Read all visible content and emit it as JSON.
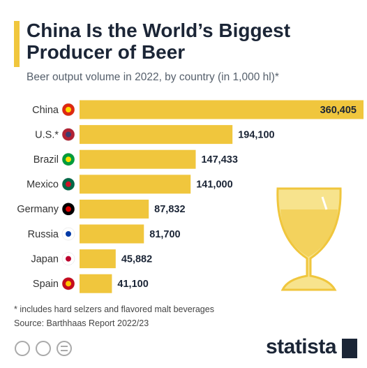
{
  "chart_data": {
    "type": "bar",
    "orientation": "horizontal",
    "title": "China Is the World’s Biggest Producer of Beer",
    "subtitle": "Beer output volume in 2022, by country (in 1,000 hl)*",
    "categories": [
      "China",
      "U.S.*",
      "Brazil",
      "Mexico",
      "Germany",
      "Russia",
      "Japan",
      "Spain"
    ],
    "values": [
      360405,
      194100,
      147433,
      141000,
      87832,
      81700,
      45882,
      41100
    ],
    "value_labels": [
      "360,405",
      "194,100",
      "147,433",
      "141,000",
      "87,832",
      "81,700",
      "45,882",
      "41,100"
    ],
    "color": "#f0c63d",
    "note": "* includes hard selzers and flavored malt beverages",
    "source": "Source: Barthhaas Report 2022/23",
    "logo": "statista"
  }
}
